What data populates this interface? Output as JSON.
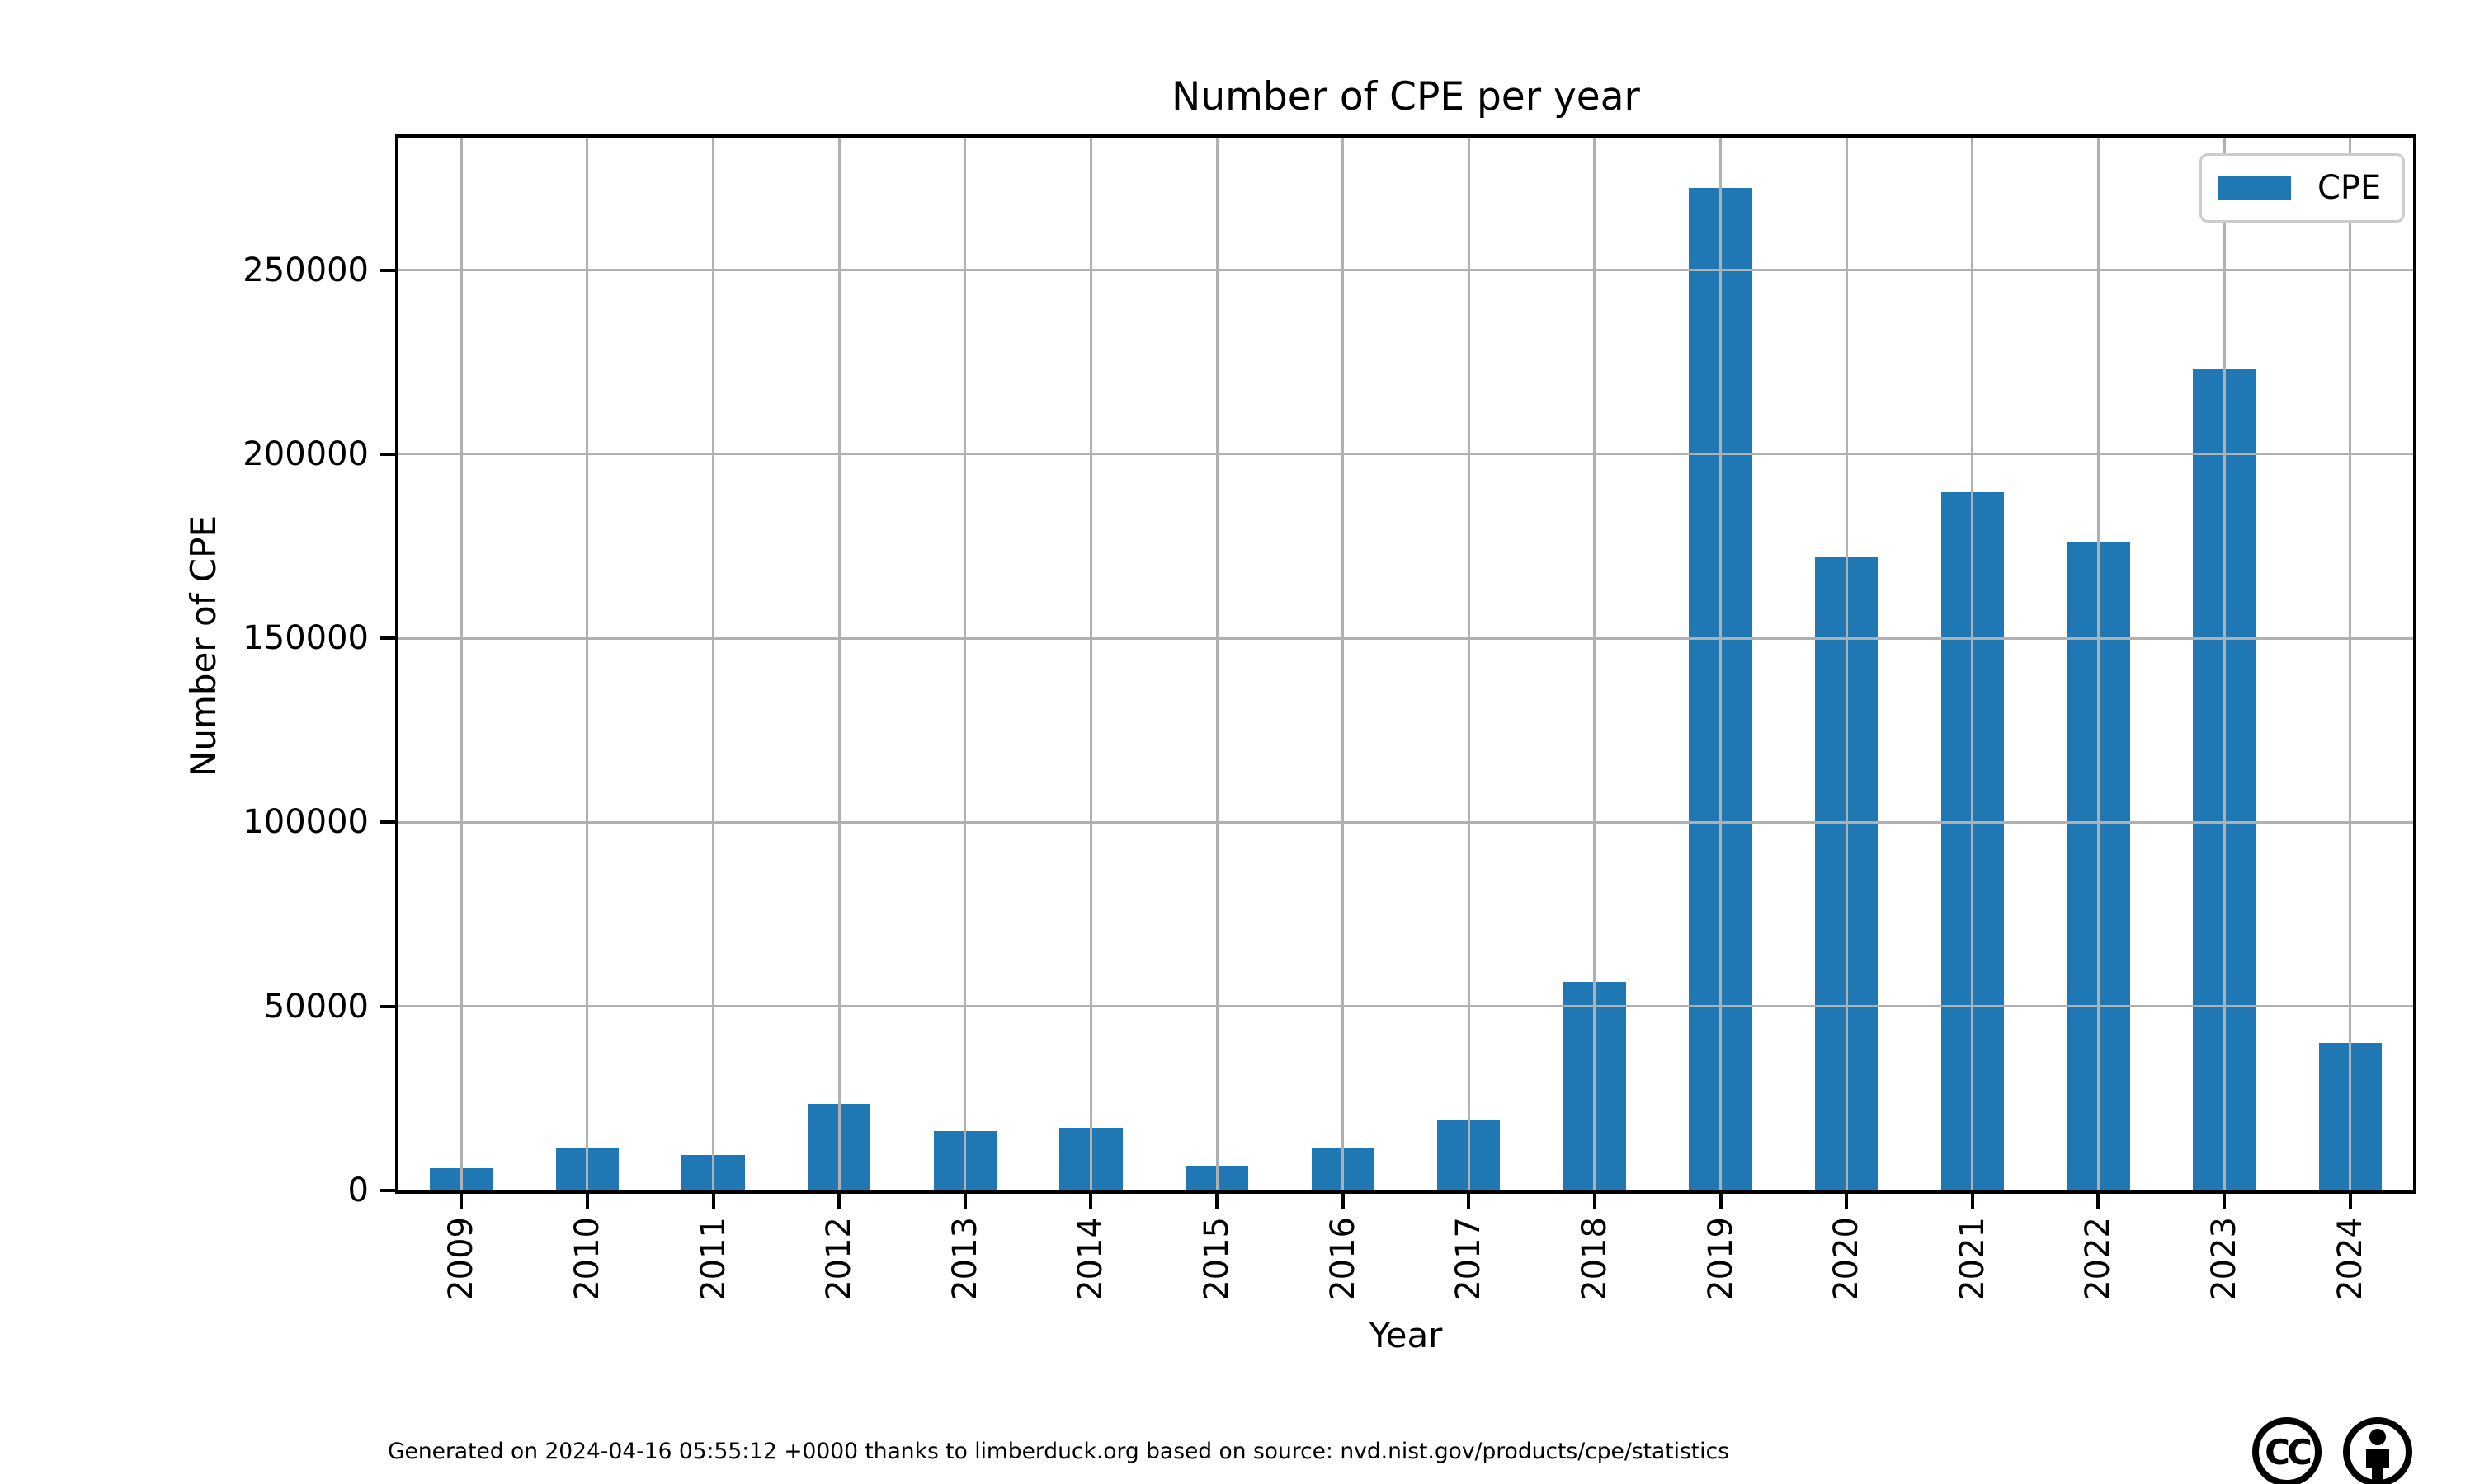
{
  "title": "Number of CPE per year",
  "legend": {
    "label": "CPE",
    "swatch_color": "#1f77b4"
  },
  "footer": {
    "text": "Generated on 2024-04-16 05:55:12 +0000 thanks to limberduck.org based on source: nvd.nist.gov/products/cpe/statistics",
    "icons": [
      "cc-icon",
      "cc-by-icon"
    ]
  },
  "colors": {
    "bar": "#1f77b4",
    "grid": "#b0b0b0",
    "spine": "#000000",
    "legend_border": "#cccccc"
  },
  "chart_data": {
    "type": "bar",
    "title": "Number of CPE per year",
    "xlabel": "Year",
    "ylabel": "Number of CPE",
    "series_name": "CPE",
    "categories": [
      "2009",
      "2010",
      "2011",
      "2012",
      "2013",
      "2014",
      "2015",
      "2016",
      "2017",
      "2018",
      "2019",
      "2020",
      "2021",
      "2022",
      "2023",
      "2024"
    ],
    "values": [
      6100,
      11400,
      9700,
      23500,
      16100,
      17000,
      6700,
      11400,
      19200,
      56700,
      272300,
      171900,
      189800,
      176000,
      223000,
      40100
    ],
    "yticks": [
      0,
      50000,
      100000,
      150000,
      200000,
      250000
    ],
    "ylim": [
      0,
      286000
    ],
    "grid": true,
    "grid_above_bars": true,
    "legend_position": "upper right",
    "bar_width_fraction": 0.5
  }
}
